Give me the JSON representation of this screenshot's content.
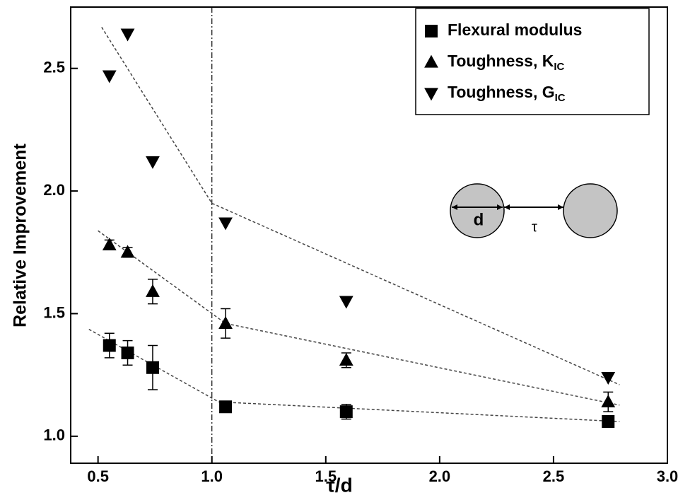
{
  "chart_data": {
    "type": "scatter",
    "xlabel": "τ/d",
    "ylabel": "Relative Improvement",
    "xlim": [
      0.38,
      3.0
    ],
    "ylim": [
      0.89,
      2.75
    ],
    "xticks": [
      0.5,
      {
        "value": 1,
        "label": "1.0"
      },
      1.5,
      {
        "value": 2,
        "label": "2.0"
      },
      2.5,
      {
        "value": 3,
        "label": "3.0"
      }
    ],
    "yticks": [
      {
        "value": 1,
        "label": "1.0"
      },
      1.5,
      {
        "value": 2,
        "label": "2.0"
      },
      2.5
    ],
    "reference_x": 1.0,
    "series": [
      {
        "name": "Flexural modulus",
        "marker": "square",
        "color": "#000000",
        "x": [
          0.55,
          0.63,
          0.74,
          1.06,
          1.59,
          2.74
        ],
        "values": [
          1.37,
          1.34,
          1.28,
          1.12,
          1.1,
          1.06
        ],
        "errors": [
          0.05,
          0.05,
          0.09,
          0.01,
          0.03,
          0.02
        ]
      },
      {
        "name": "Toughness, K",
        "name_subscript": "IC",
        "marker": "triangle-up",
        "color": "#000000",
        "x": [
          0.55,
          0.63,
          0.74,
          1.06,
          1.59,
          2.74
        ],
        "values": [
          1.78,
          1.75,
          1.59,
          1.46,
          1.31,
          1.14
        ],
        "errors": [
          0.02,
          0.02,
          0.05,
          0.06,
          0.03,
          0.04
        ]
      },
      {
        "name": "Toughness, G",
        "name_subscript": "IC",
        "marker": "triangle-down",
        "color": "#000000",
        "x": [
          0.55,
          0.63,
          0.74,
          1.06,
          1.59,
          2.74
        ],
        "values": [
          2.47,
          2.64,
          2.12,
          1.87,
          1.55,
          1.24
        ]
      }
    ],
    "fits": [
      {
        "x": [
          0.46,
          1.03,
          2.79
        ],
        "values": [
          1.436,
          1.14,
          1.06
        ]
      },
      {
        "x": [
          0.5,
          1.06,
          2.79
        ],
        "values": [
          1.838,
          1.46,
          1.127
        ]
      },
      {
        "x": [
          0.516,
          1.0,
          2.79
        ],
        "values": [
          2.668,
          1.95,
          1.21
        ]
      }
    ],
    "inset": {
      "labels": [
        "d",
        "τ"
      ]
    }
  }
}
